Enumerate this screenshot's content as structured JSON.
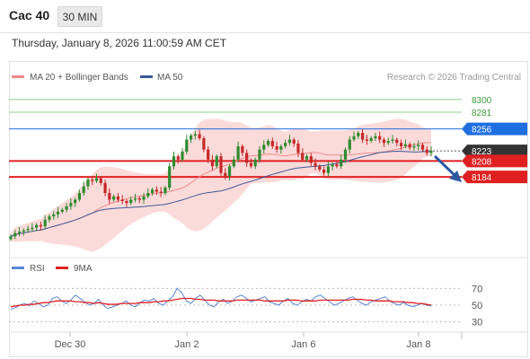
{
  "header": {
    "instrument": "Cac 40",
    "timeframe": "30 MIN",
    "datetime": "Thursday, January 8, 2026 11:00:59 AM CET"
  },
  "legend": {
    "ma20": "MA 20 + Bollinger Bands",
    "ma50": "MA 50",
    "credit": "Research © 2026 Trading Central",
    "rsi": "RSI",
    "ma9": "9MA"
  },
  "colors": {
    "ma20": "#f08a8a",
    "ma50": "#3c5a9a",
    "band": "#fbdada",
    "bull": "#2e8b2e",
    "bear": "#c62828",
    "resistance": "#8fd18f",
    "current": "#333333",
    "support": "#e02020",
    "pivot": "#1f6fe0",
    "rsi": "#5a86d6",
    "rsi_ma": "#e02020"
  },
  "chart_data": [
    {
      "type": "candlestick",
      "x_ticks": [
        "Dec 30",
        "Jan 2",
        "Jan 6",
        "Jan 8"
      ],
      "ylim": [
        8070,
        8320
      ],
      "close_series": [
        8095,
        8100,
        8102,
        8104,
        8106,
        8108,
        8112,
        8110,
        8120,
        8125,
        8128,
        8132,
        8135,
        8140,
        8145,
        8150,
        8160,
        8170,
        8180,
        8178,
        8182,
        8175,
        8160,
        8150,
        8155,
        8150,
        8148,
        8145,
        8150,
        8152,
        8150,
        8155,
        8160,
        8165,
        8162,
        8160,
        8168,
        8200,
        8215,
        8210,
        8222,
        8240,
        8246,
        8248,
        8242,
        8225,
        8210,
        8200,
        8215,
        8190,
        8185,
        8200,
        8210,
        8230,
        8220,
        8205,
        8200,
        8210,
        8225,
        8232,
        8238,
        8230,
        8225,
        8230,
        8235,
        8240,
        8234,
        8220,
        8210,
        8215,
        8205,
        8200,
        8195,
        8190,
        8200,
        8203,
        8200,
        8210,
        8225,
        8240,
        8245,
        8250,
        8240,
        8238,
        8242,
        8245,
        8240,
        8235,
        8238,
        8240,
        8235,
        8230,
        8233,
        8228,
        8230,
        8232,
        8225,
        8220,
        8223
      ],
      "levels": [
        {
          "value": 8300,
          "label": "8300",
          "role": "resistance"
        },
        {
          "value": 8281,
          "label": "8281",
          "role": "resistance"
        },
        {
          "value": 8256,
          "label": "8256",
          "role": "pivot"
        },
        {
          "value": 8223,
          "label": "8223",
          "role": "current"
        },
        {
          "value": 8208,
          "label": "8208",
          "role": "support"
        },
        {
          "value": 8184,
          "label": "8184",
          "role": "support"
        }
      ]
    },
    {
      "type": "line",
      "series": [
        {
          "name": "RSI",
          "values": [
            45,
            47,
            50,
            52,
            49,
            55,
            52,
            48,
            50,
            58,
            60,
            55,
            52,
            56,
            62,
            58,
            54,
            50,
            52,
            57,
            50,
            46,
            48,
            50,
            52,
            55,
            50,
            48,
            53,
            56,
            55,
            58,
            52,
            50,
            55,
            60,
            70,
            65,
            55,
            52,
            58,
            62,
            56,
            50,
            48,
            54,
            57,
            52,
            55,
            60,
            62,
            58,
            54,
            56,
            58,
            60,
            54,
            52,
            50,
            55,
            58,
            52,
            50,
            54,
            57,
            55,
            60,
            62,
            58,
            54,
            50,
            52,
            55,
            58,
            60,
            56,
            52,
            50,
            54,
            56,
            58,
            60,
            55,
            52,
            50,
            53,
            50,
            48,
            50,
            52,
            50,
            49
          ]
        },
        {
          "name": "9MA",
          "values": [
            48,
            49,
            50,
            50,
            51,
            51,
            52,
            53,
            53,
            54,
            55,
            55,
            55,
            55,
            54,
            54,
            53,
            53,
            52,
            53,
            52,
            51,
            51,
            51,
            52,
            52,
            52,
            52,
            53,
            53,
            53,
            54,
            54,
            55,
            55,
            56,
            57,
            58,
            58,
            58,
            57,
            57,
            56,
            56,
            56,
            55,
            55,
            55,
            55,
            56,
            56,
            56,
            56,
            56,
            56,
            55,
            55,
            55,
            55,
            55,
            56,
            56,
            56,
            55,
            55,
            55,
            55,
            56,
            56,
            56,
            56,
            56,
            56,
            56,
            57,
            57,
            57,
            56,
            56,
            55,
            55,
            55,
            55,
            54,
            54,
            54,
            53,
            53,
            52,
            52,
            51,
            50
          ]
        }
      ],
      "y_ticks": [
        70,
        50,
        30
      ],
      "ylim": [
        20,
        80
      ]
    }
  ]
}
